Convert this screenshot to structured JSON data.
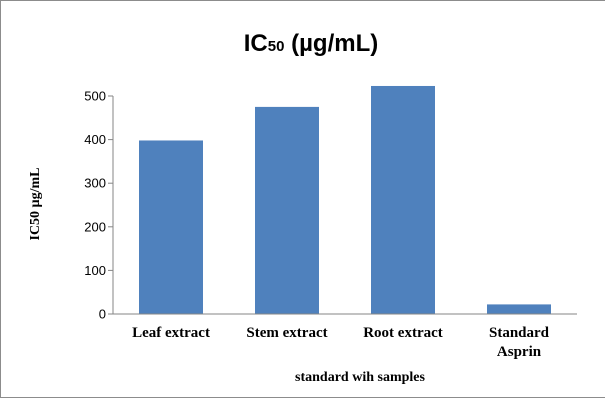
{
  "chart_data": {
    "type": "bar",
    "title_main": "IC",
    "title_sub": "50",
    "title_unit": " (µg/mL)",
    "xlabel": "standard wih samples",
    "ylabel": "IC50 µg/mL",
    "categories": [
      "Leaf extract",
      "Stem extract",
      "Root extract",
      "Standard Asprin"
    ],
    "category_lines": [
      [
        "Leaf extract"
      ],
      [
        "Stem extract"
      ],
      [
        "Root extract"
      ],
      [
        "Standard",
        "Asprin"
      ]
    ],
    "values": [
      398,
      475,
      523,
      22
    ],
    "ylim": [
      0,
      500
    ],
    "yticks": [
      0,
      100,
      200,
      300,
      400,
      500
    ],
    "bar_color": "#4f81bd",
    "grid": false,
    "legend": "none"
  }
}
